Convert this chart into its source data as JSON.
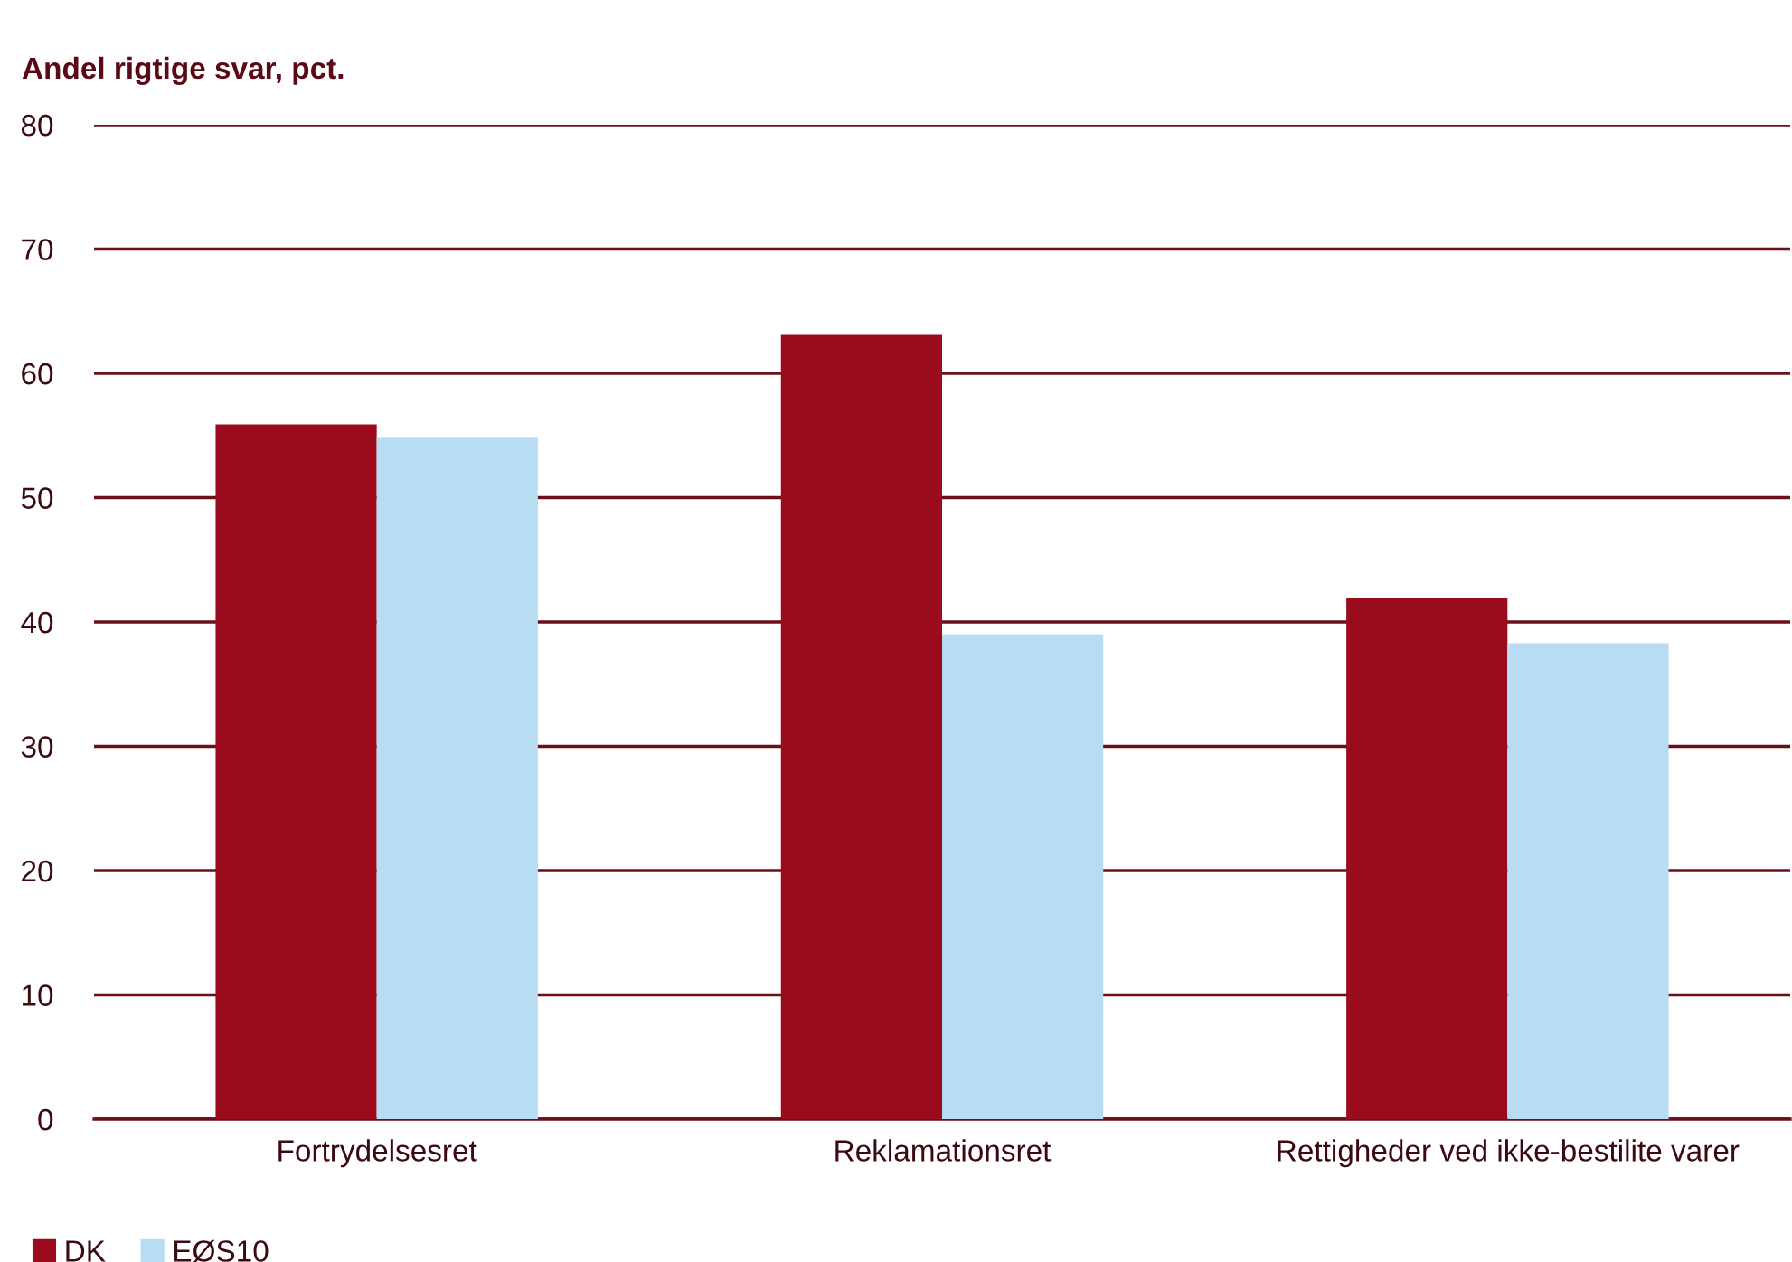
{
  "chart_data": {
    "type": "bar",
    "ylabel": "Andel rigtige svar, pct.",
    "categories": [
      "Fortrydelsesret",
      "Reklamationsret",
      "Rettigheder ved ikke-bestilite varer"
    ],
    "series": [
      {
        "name": "DK",
        "color": "#9b0b1e",
        "values": [
          55.9,
          63.1,
          41.9
        ]
      },
      {
        "name": "EØS10",
        "color": "#b8dcf2",
        "values": [
          54.9,
          39.0,
          38.3
        ]
      }
    ],
    "ylim": [
      0,
      80
    ],
    "yticks": [
      0,
      10,
      20,
      30,
      40,
      50,
      60,
      70,
      80
    ],
    "grid": "y",
    "legend": "bottom left"
  }
}
